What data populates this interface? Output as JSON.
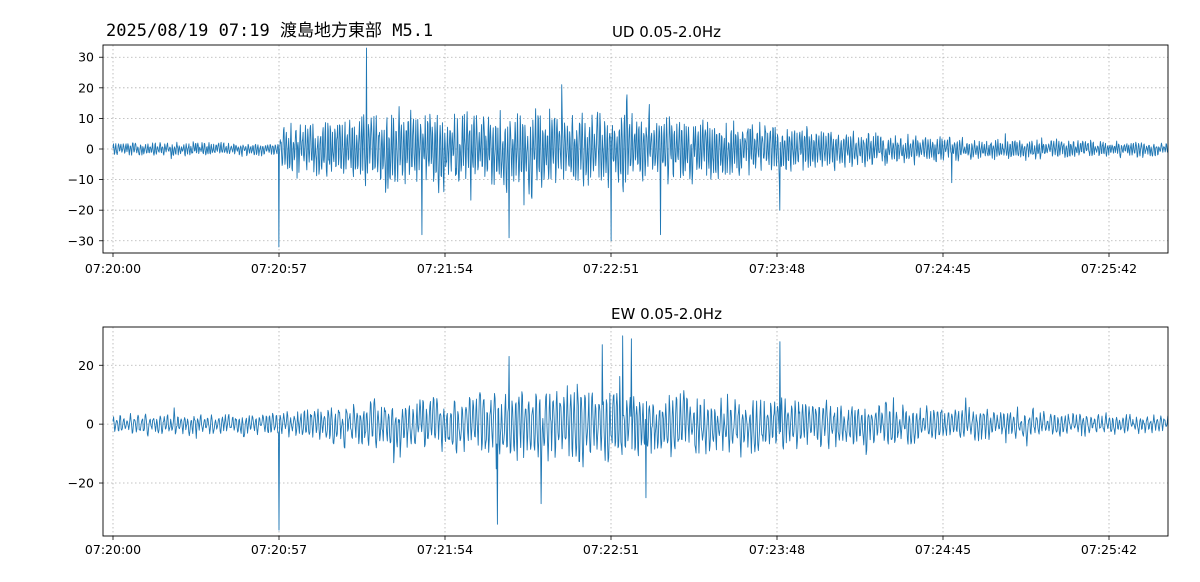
{
  "suptitle": "2025/08/19 07:19 渡島地方東部 M5.1",
  "colors": {
    "trace": "#1f77b4",
    "grid": "#b0b0b0",
    "axis": "#000000"
  },
  "chart_data": [
    {
      "type": "line",
      "title": "UD 0.05-2.0Hz",
      "grid": true,
      "x_range": [
        "07:20:00",
        "07:26:13"
      ],
      "xticks": [
        "07:20:00",
        "07:20:57",
        "07:21:54",
        "07:22:51",
        "07:23:48",
        "07:24:45",
        "07:25:42"
      ],
      "ylim": [
        -34,
        34
      ],
      "yticks": [
        -30,
        -20,
        -10,
        0,
        10,
        20,
        30
      ],
      "envelope": [
        {
          "t": "07:20:00",
          "amp": 2.5
        },
        {
          "t": "07:20:57",
          "amp": 3
        },
        {
          "t": "07:20:59",
          "amp": 10
        },
        {
          "t": "07:21:20",
          "amp": 13
        },
        {
          "t": "07:21:40",
          "amp": 15
        },
        {
          "t": "07:22:10",
          "amp": 15
        },
        {
          "t": "07:22:51",
          "amp": 15
        },
        {
          "t": "07:23:30",
          "amp": 12
        },
        {
          "t": "07:23:48",
          "amp": 10
        },
        {
          "t": "07:24:20",
          "amp": 7
        },
        {
          "t": "07:24:45",
          "amp": 5
        },
        {
          "t": "07:25:42",
          "amp": 3
        },
        {
          "t": "07:26:13",
          "amp": 2.5
        }
      ],
      "peaks": [
        {
          "t": "07:20:57",
          "v": -32
        },
        {
          "t": "07:21:27",
          "v": 33
        },
        {
          "t": "07:21:46",
          "v": -28
        },
        {
          "t": "07:22:16",
          "v": -29
        },
        {
          "t": "07:22:51",
          "v": -30
        },
        {
          "t": "07:22:34",
          "v": 21
        },
        {
          "t": "07:23:08",
          "v": -28
        },
        {
          "t": "07:23:49",
          "v": -20
        },
        {
          "t": "07:24:48",
          "v": -11
        },
        {
          "t": "07:26:03",
          "v": 8
        }
      ]
    },
    {
      "type": "line",
      "title": "EW 0.05-2.0Hz",
      "grid": true,
      "x_range": [
        "07:20:00",
        "07:26:13"
      ],
      "xticks": [
        "07:20:00",
        "07:20:57",
        "07:21:54",
        "07:22:51",
        "07:23:48",
        "07:24:45",
        "07:25:42"
      ],
      "ylim": [
        -38,
        33
      ],
      "yticks": [
        -20,
        0,
        20
      ],
      "envelope": [
        {
          "t": "07:20:00",
          "amp": 4
        },
        {
          "t": "07:20:57",
          "amp": 4.5
        },
        {
          "t": "07:21:20",
          "amp": 9
        },
        {
          "t": "07:21:54",
          "amp": 12
        },
        {
          "t": "07:22:20",
          "amp": 15
        },
        {
          "t": "07:22:51",
          "amp": 16
        },
        {
          "t": "07:23:30",
          "amp": 12
        },
        {
          "t": "07:23:48",
          "amp": 11
        },
        {
          "t": "07:24:20",
          "amp": 9
        },
        {
          "t": "07:24:45",
          "amp": 7
        },
        {
          "t": "07:25:42",
          "amp": 4
        },
        {
          "t": "07:26:13",
          "amp": 4
        }
      ],
      "peaks": [
        {
          "t": "07:20:57",
          "v": -36
        },
        {
          "t": "07:22:12",
          "v": -34
        },
        {
          "t": "07:22:16",
          "v": 23
        },
        {
          "t": "07:22:27",
          "v": -27
        },
        {
          "t": "07:22:48",
          "v": 27
        },
        {
          "t": "07:22:55",
          "v": 30
        },
        {
          "t": "07:22:58",
          "v": 29
        },
        {
          "t": "07:23:03",
          "v": -25
        },
        {
          "t": "07:23:49",
          "v": 28
        },
        {
          "t": "07:26:04",
          "v": 10
        }
      ]
    }
  ]
}
